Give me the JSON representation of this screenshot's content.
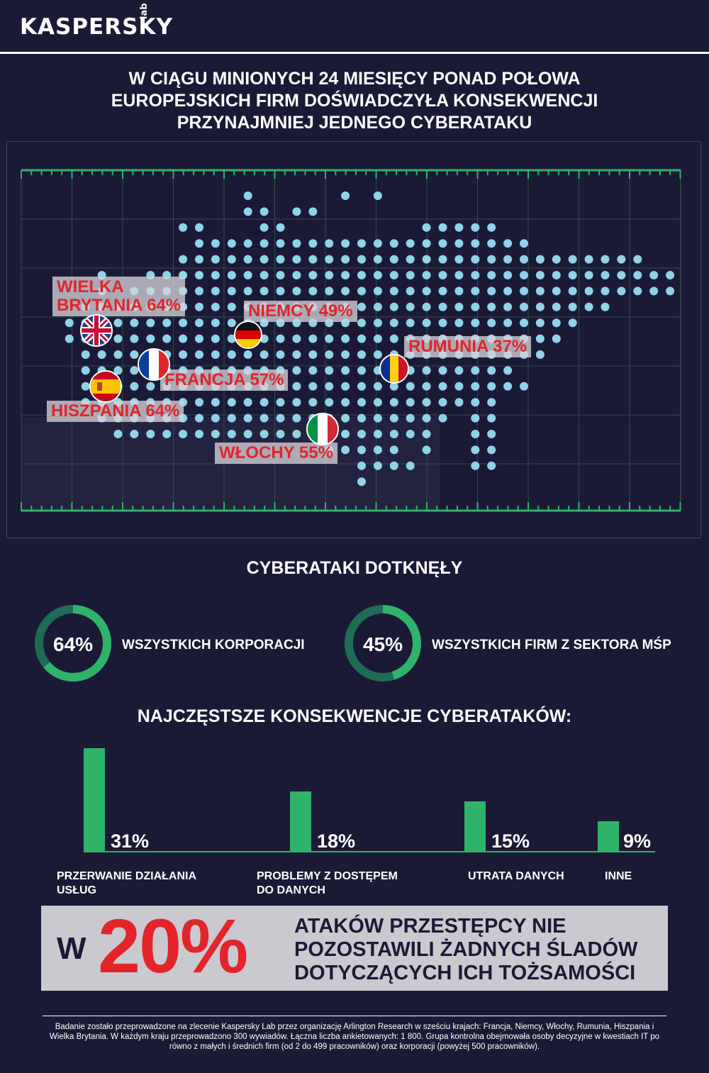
{
  "brand": {
    "name": "KASPERSKY",
    "suffix": "lab"
  },
  "headline": "W CIĄGU MINIONYCH 24 MIESIĘCY PONAD POŁOWA EUROPEJSKICH FIRM DOŚWIADCZYŁA KONSEKWENCJI PRZYNAJMNIEJ JEDNEGO CYBERATAKU",
  "colors": {
    "background": "#1b1a36",
    "accent_green": "#2fb36b",
    "dark_green": "#1f6b55",
    "dot": "#8fd3e8",
    "label_red": "#e3242b",
    "label_bg": "#d2d2d8"
  },
  "map": {
    "countries": [
      {
        "id": "uk",
        "label": "WIELKA BRYTANIA 64%",
        "label_lines": [
          "WIELKA",
          "BRYTANIA 64%"
        ],
        "value": 64,
        "flag_icon": "uk-flag-icon"
      },
      {
        "id": "de",
        "label": "NIEMCY 49%",
        "value": 49,
        "flag_icon": "germany-flag-icon"
      },
      {
        "id": "ro",
        "label": "RUMUNIA 37%",
        "value": 37,
        "flag_icon": "romania-flag-icon"
      },
      {
        "id": "fr",
        "label": "FRANCJA 57%",
        "value": 57,
        "flag_icon": "france-flag-icon"
      },
      {
        "id": "es",
        "label": "HISZPANIA 64%",
        "value": 64,
        "flag_icon": "spain-flag-icon"
      },
      {
        "id": "it",
        "label": "WŁOCHY 55%",
        "value": 55,
        "flag_icon": "italy-flag-icon"
      }
    ]
  },
  "affected": {
    "title": "CYBERATAKI DOTKNĘŁY",
    "items": [
      {
        "value_label": "64%",
        "value": 64,
        "text": "WSZYSTKICH KORPORACJI"
      },
      {
        "value_label": "45%",
        "value": 45,
        "text": "WSZYSTKICH FIRM Z SEKTORA MŚP"
      }
    ]
  },
  "chart_data": {
    "type": "bar",
    "title": "NAJCZĘSTSZE KONSEKWENCJE CYBERATAKÓW:",
    "categories": [
      "PRZERWANIE DZIAŁANIA USŁUG",
      "PROBLEMY Z DOSTĘPEM DO DANYCH",
      "UTRATA DANYCH",
      "INNE"
    ],
    "category_lines": [
      [
        "PRZERWANIE DZIAŁANIA",
        "USŁUG"
      ],
      [
        "PROBLEMY Z DOSTĘPEM",
        "DO DANYCH"
      ],
      [
        "UTRATA DANYCH"
      ],
      [
        "INNE"
      ]
    ],
    "values": [
      31,
      18,
      15,
      9
    ],
    "value_labels": [
      "31%",
      "18%",
      "15%",
      "9%"
    ],
    "grid": false
  },
  "banner": {
    "prefix": "W",
    "percent": "20%",
    "text_lines": [
      "ATAKÓW PRZESTĘPCY NIE",
      "POZOSTAWILI ŻADNYCH ŚLADÓW",
      "DOTYCZĄCYCH ICH TOŻSAMOŚCI"
    ]
  },
  "footnote": "Badanie zostało przeprowadzone na zlecenie Kaspersky Lab przez organizację Arlington Research w sześciu krajach: Francja, Niemcy, Włochy, Rumunia, Hiszpania i Wielka Brytania. W każdym kraju przeprowadzono 300 wywiadów. Łączna liczba ankietowanych: 1 800. Grupa kontrolna obejmowała osoby decyzyjne w kwestiach IT po równo z małych i średnich firm (od 2 do 499 pracowników) oraz korporacji (powyżej 500 pracowników)."
}
